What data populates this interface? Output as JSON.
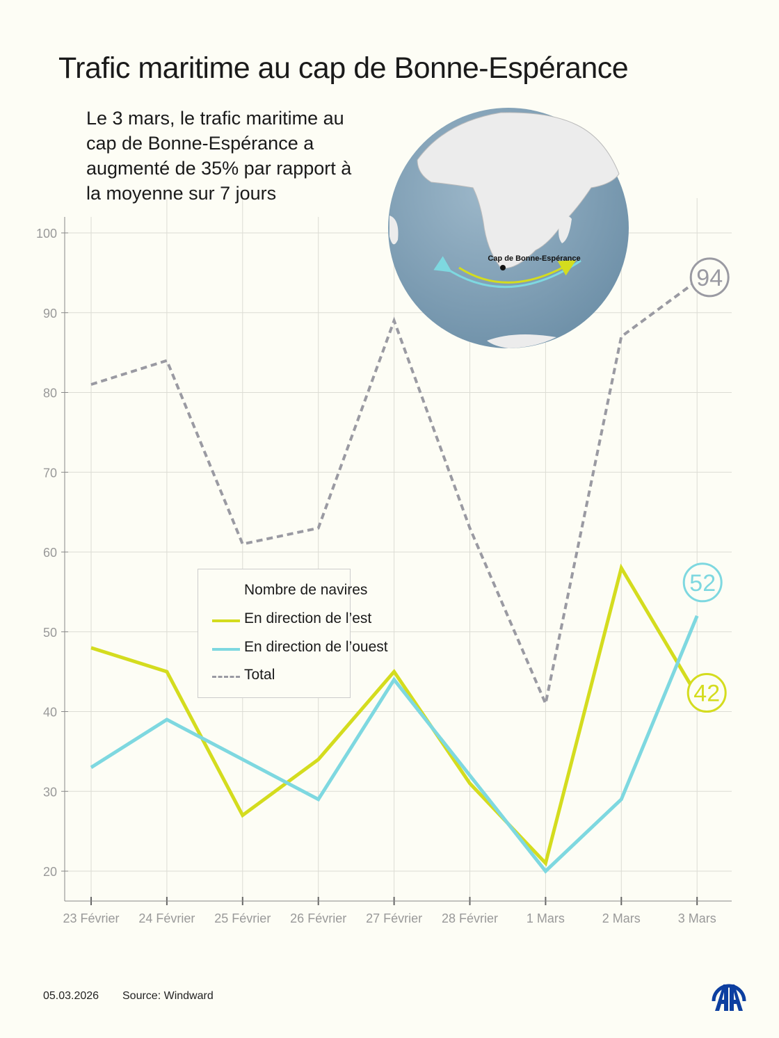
{
  "title": "Trafic maritime au cap de Bonne-Espérance",
  "subtitle": "Le 3 mars, le trafic maritime au cap de Bonne-Espérance a augmenté de 35% par rapport à la moyenne sur 7 jours",
  "globe": {
    "label": "Cap de Bonne-Espérance"
  },
  "footer": {
    "date": "05.03.2026",
    "source": "Source: Windward"
  },
  "logo": {
    "text": "AA",
    "color": "#0d3fa0"
  },
  "chart_data": {
    "type": "line",
    "categories": [
      "23 Février",
      "24 Février",
      "25 Février",
      "26 Février",
      "27 Février",
      "28 Février",
      "1 Mars",
      "2 Mars",
      "3 Mars"
    ],
    "ylim": [
      20,
      100
    ],
    "yticks": [
      20,
      30,
      40,
      50,
      60,
      70,
      80,
      90,
      100
    ],
    "grid": true,
    "legend": {
      "title": "Nombre de navires",
      "placement": "center-left"
    },
    "series": [
      {
        "name": "En direction de l’est",
        "color": "#d4dc1e",
        "style": "solid",
        "values": [
          48,
          45,
          27,
          34,
          45,
          31,
          21,
          58,
          42
        ],
        "end_label": "42"
      },
      {
        "name": "En direction de l’ouest",
        "color": "#7ed8e0",
        "style": "solid",
        "values": [
          33,
          39,
          34,
          29,
          44,
          32,
          20,
          29,
          52
        ],
        "end_label": "52"
      },
      {
        "name": "Total",
        "color": "#9a9aa2",
        "style": "dashed",
        "values": [
          81,
          84,
          61,
          63,
          89,
          63,
          41,
          87,
          94
        ],
        "end_label": "94"
      }
    ]
  }
}
